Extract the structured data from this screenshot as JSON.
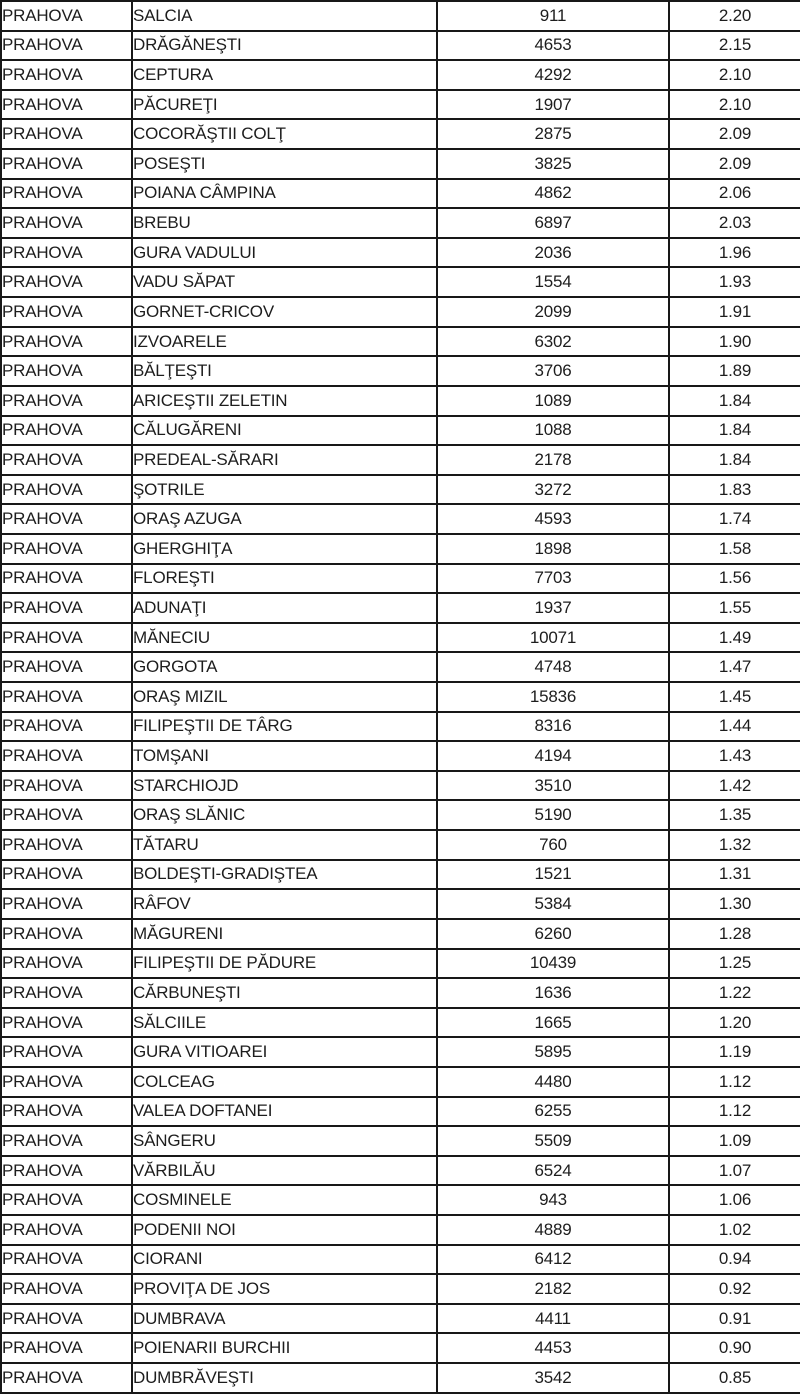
{
  "colors": {
    "border": "#181818",
    "text": "#1d1d1d",
    "background": "#ffffff"
  },
  "table": {
    "rows": [
      {
        "county": "PRAHOVA",
        "locality": "SALCIA",
        "value": "911",
        "rate": "2.20"
      },
      {
        "county": "PRAHOVA",
        "locality": "DRĂGĂNEŞTI",
        "value": "4653",
        "rate": "2.15"
      },
      {
        "county": "PRAHOVA",
        "locality": "CEPTURA",
        "value": "4292",
        "rate": "2.10"
      },
      {
        "county": "PRAHOVA",
        "locality": "PĂCUREŢI",
        "value": "1907",
        "rate": "2.10"
      },
      {
        "county": "PRAHOVA",
        "locality": "COCORĂŞTII COLŢ",
        "value": "2875",
        "rate": "2.09"
      },
      {
        "county": "PRAHOVA",
        "locality": "POSEŞTI",
        "value": "3825",
        "rate": "2.09"
      },
      {
        "county": "PRAHOVA",
        "locality": "POIANA CÂMPINA",
        "value": "4862",
        "rate": "2.06"
      },
      {
        "county": "PRAHOVA",
        "locality": "BREBU",
        "value": "6897",
        "rate": "2.03"
      },
      {
        "county": "PRAHOVA",
        "locality": "GURA VADULUI",
        "value": "2036",
        "rate": "1.96"
      },
      {
        "county": "PRAHOVA",
        "locality": "VADU SĂPAT",
        "value": "1554",
        "rate": "1.93"
      },
      {
        "county": "PRAHOVA",
        "locality": "GORNET-CRICOV",
        "value": "2099",
        "rate": "1.91"
      },
      {
        "county": "PRAHOVA",
        "locality": "IZVOARELE",
        "value": "6302",
        "rate": "1.90"
      },
      {
        "county": "PRAHOVA",
        "locality": "BĂLŢEŞTI",
        "value": "3706",
        "rate": "1.89"
      },
      {
        "county": "PRAHOVA",
        "locality": "ARICEŞTII ZELETIN",
        "value": "1089",
        "rate": "1.84"
      },
      {
        "county": "PRAHOVA",
        "locality": "CĂLUGĂRENI",
        "value": "1088",
        "rate": "1.84"
      },
      {
        "county": "PRAHOVA",
        "locality": "PREDEAL-SĂRARI",
        "value": "2178",
        "rate": "1.84"
      },
      {
        "county": "PRAHOVA",
        "locality": "ŞOTRILE",
        "value": "3272",
        "rate": "1.83"
      },
      {
        "county": "PRAHOVA",
        "locality": "ORAŞ AZUGA",
        "value": "4593",
        "rate": "1.74"
      },
      {
        "county": "PRAHOVA",
        "locality": "GHERGHIŢA",
        "value": "1898",
        "rate": "1.58"
      },
      {
        "county": "PRAHOVA",
        "locality": "FLOREŞTI",
        "value": "7703",
        "rate": "1.56"
      },
      {
        "county": "PRAHOVA",
        "locality": "ADUNAŢI",
        "value": "1937",
        "rate": "1.55"
      },
      {
        "county": "PRAHOVA",
        "locality": "MĂNECIU",
        "value": "10071",
        "rate": "1.49"
      },
      {
        "county": "PRAHOVA",
        "locality": "GORGOTA",
        "value": "4748",
        "rate": "1.47"
      },
      {
        "county": "PRAHOVA",
        "locality": "ORAŞ MIZIL",
        "value": "15836",
        "rate": "1.45"
      },
      {
        "county": "PRAHOVA",
        "locality": "FILIPEŞTII DE TÂRG",
        "value": "8316",
        "rate": "1.44"
      },
      {
        "county": "PRAHOVA",
        "locality": "TOMŞANI",
        "value": "4194",
        "rate": "1.43"
      },
      {
        "county": "PRAHOVA",
        "locality": "STARCHIOJD",
        "value": "3510",
        "rate": "1.42"
      },
      {
        "county": "PRAHOVA",
        "locality": "ORAŞ SLĂNIC",
        "value": "5190",
        "rate": "1.35"
      },
      {
        "county": "PRAHOVA",
        "locality": "TĂTARU",
        "value": "760",
        "rate": "1.32"
      },
      {
        "county": "PRAHOVA",
        "locality": "BOLDEŞTI-GRADIŞTEA",
        "value": "1521",
        "rate": "1.31"
      },
      {
        "county": "PRAHOVA",
        "locality": "RÂFOV",
        "value": "5384",
        "rate": "1.30"
      },
      {
        "county": "PRAHOVA",
        "locality": "MĂGURENI",
        "value": "6260",
        "rate": "1.28"
      },
      {
        "county": "PRAHOVA",
        "locality": "FILIPEŞTII DE PĂDURE",
        "value": "10439",
        "rate": "1.25"
      },
      {
        "county": "PRAHOVA",
        "locality": "CĂRBUNEŞTI",
        "value": "1636",
        "rate": "1.22"
      },
      {
        "county": "PRAHOVA",
        "locality": "SĂLCIILE",
        "value": "1665",
        "rate": "1.20"
      },
      {
        "county": "PRAHOVA",
        "locality": "GURA VITIOAREI",
        "value": "5895",
        "rate": "1.19"
      },
      {
        "county": "PRAHOVA",
        "locality": "COLCEAG",
        "value": "4480",
        "rate": "1.12"
      },
      {
        "county": "PRAHOVA",
        "locality": "VALEA DOFTANEI",
        "value": "6255",
        "rate": "1.12"
      },
      {
        "county": "PRAHOVA",
        "locality": "SÂNGERU",
        "value": "5509",
        "rate": "1.09"
      },
      {
        "county": "PRAHOVA",
        "locality": "VĂRBILĂU",
        "value": "6524",
        "rate": "1.07"
      },
      {
        "county": "PRAHOVA",
        "locality": "COSMINELE",
        "value": "943",
        "rate": "1.06"
      },
      {
        "county": "PRAHOVA",
        "locality": "PODENII NOI",
        "value": "4889",
        "rate": "1.02"
      },
      {
        "county": "PRAHOVA",
        "locality": "CIORANI",
        "value": "6412",
        "rate": "0.94"
      },
      {
        "county": "PRAHOVA",
        "locality": "PROVIŢA DE JOS",
        "value": "2182",
        "rate": "0.92"
      },
      {
        "county": "PRAHOVA",
        "locality": "DUMBRAVA",
        "value": "4411",
        "rate": "0.91"
      },
      {
        "county": "PRAHOVA",
        "locality": "POIENARII BURCHII",
        "value": "4453",
        "rate": "0.90"
      },
      {
        "county": "PRAHOVA",
        "locality": "DUMBRĂVEŞTI",
        "value": "3542",
        "rate": "0.85"
      }
    ]
  }
}
